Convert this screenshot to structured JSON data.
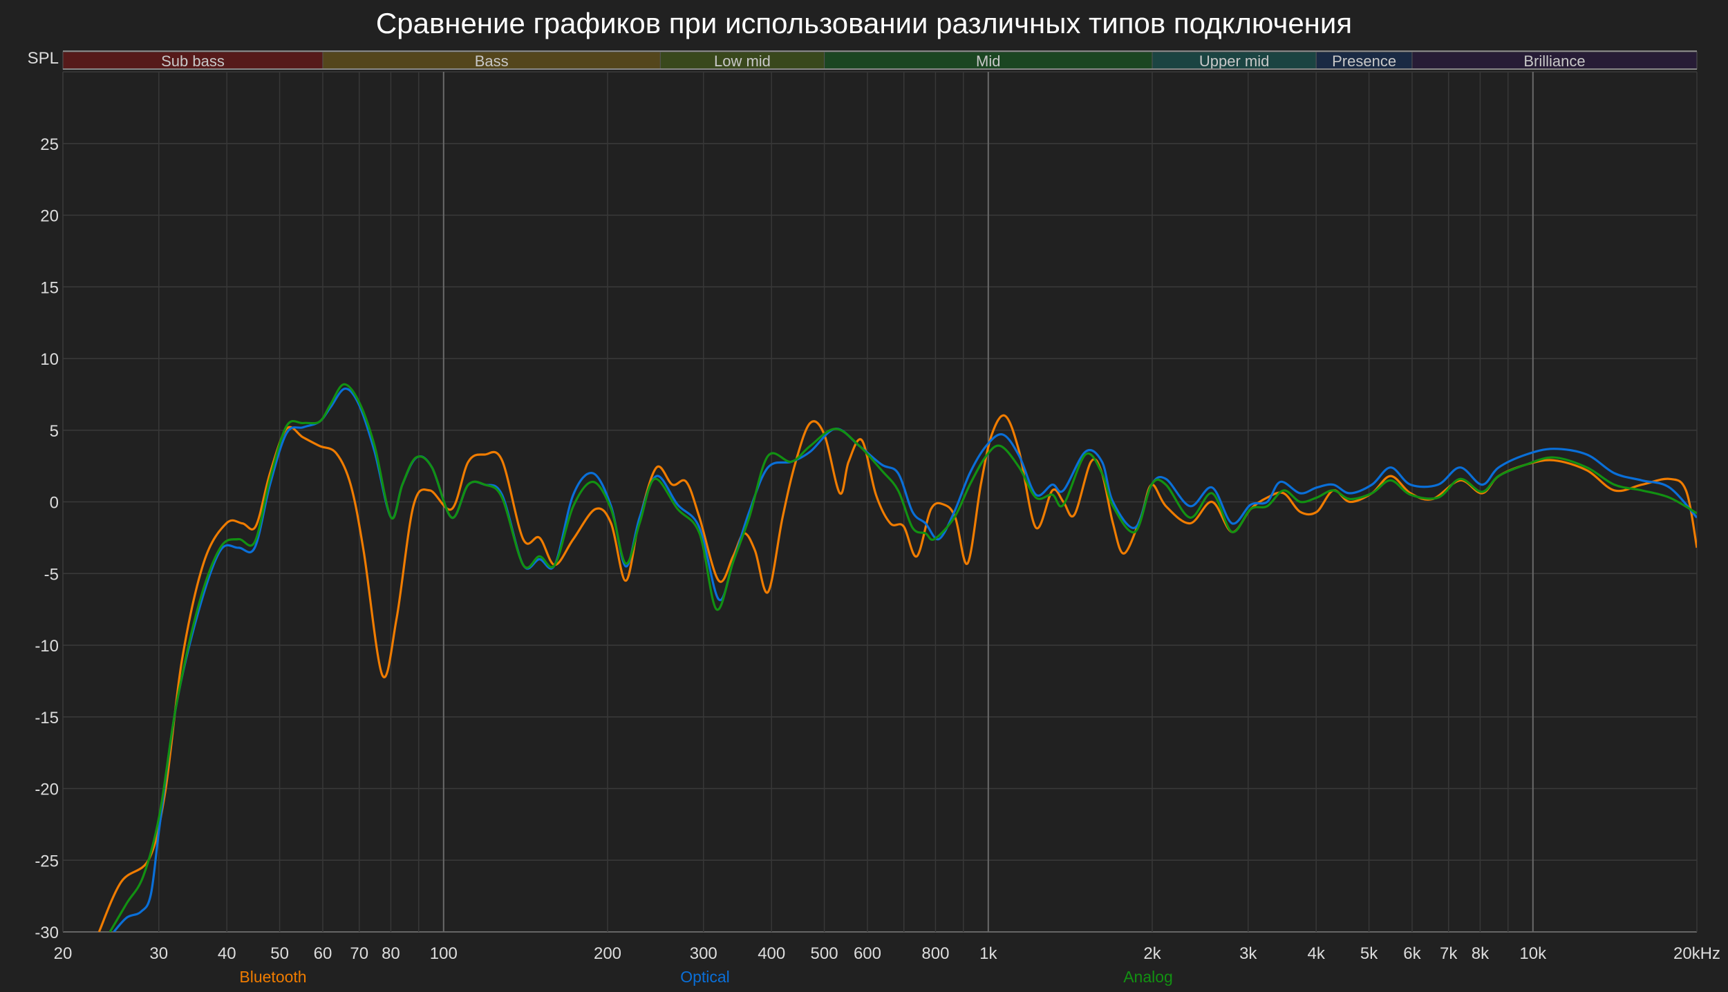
{
  "chart_data": {
    "type": "line",
    "title": "Сравнение графиков при использовании различных типов подключения",
    "ylabel": "SPL",
    "xscale": "log",
    "xlim": [
      20,
      20000
    ],
    "ylim": [
      -30,
      30
    ],
    "grid": true,
    "legend_placement": "bottom",
    "x_ticks": [
      {
        "f": 20,
        "label": "20"
      },
      {
        "f": 30,
        "label": "30"
      },
      {
        "f": 40,
        "label": "40"
      },
      {
        "f": 50,
        "label": "50"
      },
      {
        "f": 60,
        "label": "60"
      },
      {
        "f": 70,
        "label": "70"
      },
      {
        "f": 80,
        "label": "80"
      },
      {
        "f": 100,
        "label": "100"
      },
      {
        "f": 200,
        "label": "200"
      },
      {
        "f": 300,
        "label": "300"
      },
      {
        "f": 400,
        "label": "400"
      },
      {
        "f": 500,
        "label": "500"
      },
      {
        "f": 600,
        "label": "600"
      },
      {
        "f": 800,
        "label": "800"
      },
      {
        "f": 1000,
        "label": "1k"
      },
      {
        "f": 2000,
        "label": "2k"
      },
      {
        "f": 3000,
        "label": "3k"
      },
      {
        "f": 4000,
        "label": "4k"
      },
      {
        "f": 5000,
        "label": "5k"
      },
      {
        "f": 6000,
        "label": "6k"
      },
      {
        "f": 7000,
        "label": "7k"
      },
      {
        "f": 8000,
        "label": "8k"
      },
      {
        "f": 10000,
        "label": "10k"
      },
      {
        "f": 20000,
        "label": "20kHz"
      }
    ],
    "x_gridlines": [
      30,
      40,
      50,
      60,
      70,
      80,
      90,
      100,
      200,
      300,
      400,
      500,
      600,
      700,
      800,
      900,
      1000,
      2000,
      3000,
      4000,
      5000,
      6000,
      7000,
      8000,
      9000,
      10000,
      20000
    ],
    "x_major_gridlines": [
      100,
      1000,
      10000
    ],
    "y_ticks": [
      25,
      20,
      15,
      10,
      5,
      0,
      -5,
      -10,
      -15,
      -20,
      -25,
      -30
    ],
    "bands": [
      {
        "label": "Sub bass",
        "from": 20,
        "to": 60,
        "color": "#561a1a"
      },
      {
        "label": "Bass",
        "from": 60,
        "to": 250,
        "color": "#54461c"
      },
      {
        "label": "Low mid",
        "from": 250,
        "to": 500,
        "color": "#39481c"
      },
      {
        "label": "Mid",
        "from": 500,
        "to": 2000,
        "color": "#1b4622"
      },
      {
        "label": "Upper mid",
        "from": 2000,
        "to": 4000,
        "color": "#1b4442"
      },
      {
        "label": "Presence",
        "from": 4000,
        "to": 6000,
        "color": "#1a2a44"
      },
      {
        "label": "Brilliance",
        "from": 6000,
        "to": 20000,
        "color": "#271c36"
      }
    ],
    "series": [
      {
        "name": "Bluetooth",
        "color": "#f07c00",
        "points": [
          [
            23.3,
            -30
          ],
          [
            25.6,
            -26.5
          ],
          [
            28.8,
            -24.9
          ],
          [
            30.8,
            -20.3
          ],
          [
            33.1,
            -11
          ],
          [
            36.3,
            -4.2
          ],
          [
            39.9,
            -1.5
          ],
          [
            42.7,
            -1.5
          ],
          [
            45.2,
            -1.7
          ],
          [
            48,
            2
          ],
          [
            51.5,
            5.1
          ],
          [
            55.2,
            4.5
          ],
          [
            59.2,
            3.9
          ],
          [
            63.5,
            3.4
          ],
          [
            67.5,
            1.2
          ],
          [
            71.3,
            -3.4
          ],
          [
            77.2,
            -12.1
          ],
          [
            82,
            -8.1
          ],
          [
            88,
            -0.3
          ],
          [
            94.3,
            0.8
          ],
          [
            103.5,
            -0.5
          ],
          [
            111,
            2.8
          ],
          [
            119,
            3.3
          ],
          [
            128,
            2.9
          ],
          [
            140,
            -2.6
          ],
          [
            150,
            -2.5
          ],
          [
            160,
            -4.4
          ],
          [
            173,
            -2.6
          ],
          [
            190,
            -0.5
          ],
          [
            203,
            -1.5
          ],
          [
            216,
            -5.5
          ],
          [
            229,
            -1.2
          ],
          [
            246,
            2.4
          ],
          [
            263,
            1.2
          ],
          [
            279,
            1.4
          ],
          [
            295,
            -1.1
          ],
          [
            320,
            -5.5
          ],
          [
            340,
            -3.8
          ],
          [
            356,
            -2.2
          ],
          [
            373,
            -3.4
          ],
          [
            394,
            -6.3
          ],
          [
            419,
            -1.1
          ],
          [
            443,
            2.8
          ],
          [
            471,
            5.5
          ],
          [
            500,
            4.7
          ],
          [
            534,
            0.6
          ],
          [
            554,
            2.8
          ],
          [
            586,
            4.3
          ],
          [
            622,
            0.5
          ],
          [
            661,
            -1.5
          ],
          [
            699,
            -1.7
          ],
          [
            739,
            -3.8
          ],
          [
            785,
            -0.5
          ],
          [
            830,
            -0.2
          ],
          [
            870,
            -1.1
          ],
          [
            916,
            -4.3
          ],
          [
            969,
            1.2
          ],
          [
            1015,
            4.7
          ],
          [
            1074,
            6
          ],
          [
            1140,
            3.5
          ],
          [
            1223,
            -1.8
          ],
          [
            1311,
            0.8
          ],
          [
            1374,
            0
          ],
          [
            1439,
            -0.9
          ],
          [
            1544,
            2.8
          ],
          [
            1617,
            2
          ],
          [
            1694,
            -1.5
          ],
          [
            1775,
            -3.6
          ],
          [
            1904,
            -1.1
          ],
          [
            1994,
            1.2
          ],
          [
            2119,
            -0.3
          ],
          [
            2347,
            -1.5
          ],
          [
            2576,
            0
          ],
          [
            2802,
            -2.1
          ],
          [
            3032,
            -0.5
          ],
          [
            3251,
            0.3
          ],
          [
            3487,
            0.6
          ],
          [
            3739,
            -0.7
          ],
          [
            4009,
            -0.7
          ],
          [
            4299,
            0.8
          ],
          [
            4611,
            0
          ],
          [
            5062,
            0.6
          ],
          [
            5480,
            1.8
          ],
          [
            5960,
            0.6
          ],
          [
            6541,
            0.2
          ],
          [
            7348,
            1.5
          ],
          [
            8063,
            0.6
          ],
          [
            8650,
            1.8
          ],
          [
            9716,
            2.6
          ],
          [
            10920,
            2.9
          ],
          [
            12560,
            2.2
          ],
          [
            14110,
            0.8
          ],
          [
            15850,
            1.2
          ],
          [
            17810,
            1.6
          ],
          [
            19100,
            0.8
          ],
          [
            20000,
            -3.2
          ]
        ]
      },
      {
        "name": "Optical",
        "color": "#0a6fd8",
        "points": [
          [
            24.8,
            -30
          ],
          [
            26.2,
            -29
          ],
          [
            27.8,
            -28.6
          ],
          [
            29,
            -27.4
          ],
          [
            30.1,
            -22.6
          ],
          [
            32.3,
            -14.2
          ],
          [
            35.5,
            -7.6
          ],
          [
            38.9,
            -3.4
          ],
          [
            42,
            -3.2
          ],
          [
            45,
            -3.2
          ],
          [
            48,
            1.2
          ],
          [
            51.5,
            4.8
          ],
          [
            55.2,
            5.2
          ],
          [
            59.2,
            5.6
          ],
          [
            62,
            6.6
          ],
          [
            65.9,
            7.9
          ],
          [
            69.9,
            6.8
          ],
          [
            74.7,
            3.5
          ],
          [
            80.1,
            -1.1
          ],
          [
            84,
            1.2
          ],
          [
            89.2,
            3.1
          ],
          [
            95.2,
            2.4
          ],
          [
            103.5,
            -1.1
          ],
          [
            111,
            1.2
          ],
          [
            119,
            1.2
          ],
          [
            128,
            0.5
          ],
          [
            140,
            -4.4
          ],
          [
            150,
            -4
          ],
          [
            160,
            -4.4
          ],
          [
            173,
            0.5
          ],
          [
            188,
            2
          ],
          [
            203,
            -0.3
          ],
          [
            216,
            -4.5
          ],
          [
            229,
            -1.1
          ],
          [
            246,
            1.8
          ],
          [
            269,
            -0.2
          ],
          [
            295,
            -1.8
          ],
          [
            320,
            -6.8
          ],
          [
            340,
            -4.2
          ],
          [
            364,
            -0.7
          ],
          [
            394,
            2.4
          ],
          [
            435,
            2.8
          ],
          [
            471,
            3.5
          ],
          [
            524,
            5.1
          ],
          [
            580,
            3.9
          ],
          [
            637,
            2.6
          ],
          [
            683,
            2
          ],
          [
            726,
            -0.7
          ],
          [
            767,
            -1.5
          ],
          [
            811,
            -2.6
          ],
          [
            866,
            -0.7
          ],
          [
            925,
            2
          ],
          [
            991,
            3.9
          ],
          [
            1063,
            4.7
          ],
          [
            1140,
            3.2
          ],
          [
            1223,
            0.5
          ],
          [
            1311,
            1.2
          ],
          [
            1374,
            0.8
          ],
          [
            1508,
            3.5
          ],
          [
            1617,
            2.8
          ],
          [
            1694,
            0
          ],
          [
            1859,
            -1.8
          ],
          [
            1994,
            1.2
          ],
          [
            2119,
            1.6
          ],
          [
            2347,
            -0.3
          ],
          [
            2576,
            1
          ],
          [
            2802,
            -1.5
          ],
          [
            3032,
            -0.2
          ],
          [
            3251,
            0
          ],
          [
            3439,
            1.4
          ],
          [
            3739,
            0.6
          ],
          [
            4009,
            1
          ],
          [
            4299,
            1.2
          ],
          [
            4611,
            0.6
          ],
          [
            5062,
            1.2
          ],
          [
            5480,
            2.4
          ],
          [
            5960,
            1.2
          ],
          [
            6694,
            1.2
          ],
          [
            7348,
            2.4
          ],
          [
            8063,
            1.2
          ],
          [
            8650,
            2.4
          ],
          [
            9716,
            3.3
          ],
          [
            10920,
            3.7
          ],
          [
            12560,
            3.3
          ],
          [
            14110,
            2
          ],
          [
            15850,
            1.5
          ],
          [
            17810,
            1
          ],
          [
            20000,
            -1.1
          ]
        ]
      },
      {
        "name": "Analog",
        "color": "#129112",
        "points": [
          [
            24.4,
            -30
          ],
          [
            26.2,
            -28
          ],
          [
            28.1,
            -26.1
          ],
          [
            30.1,
            -21.8
          ],
          [
            32.3,
            -14.2
          ],
          [
            35.5,
            -7.2
          ],
          [
            38.9,
            -3.2
          ],
          [
            42,
            -2.6
          ],
          [
            45,
            -2.8
          ],
          [
            48,
            1.6
          ],
          [
            51.5,
            5.3
          ],
          [
            55.2,
            5.5
          ],
          [
            59.2,
            5.6
          ],
          [
            62,
            6.8
          ],
          [
            65.6,
            8.2
          ],
          [
            69.9,
            7
          ],
          [
            74.7,
            3.9
          ],
          [
            80.1,
            -1.1
          ],
          [
            84,
            1.2
          ],
          [
            89,
            3.1
          ],
          [
            95.2,
            2.4
          ],
          [
            103.5,
            -1.1
          ],
          [
            111,
            1.2
          ],
          [
            119,
            1.2
          ],
          [
            128,
            0.3
          ],
          [
            140,
            -4.4
          ],
          [
            150,
            -3.8
          ],
          [
            160,
            -4.4
          ],
          [
            173,
            -0.3
          ],
          [
            188,
            1.4
          ],
          [
            203,
            -0.5
          ],
          [
            216,
            -4.3
          ],
          [
            229,
            -1.5
          ],
          [
            244,
            1.6
          ],
          [
            269,
            -0.5
          ],
          [
            295,
            -2.2
          ],
          [
            317,
            -7.5
          ],
          [
            340,
            -4.2
          ],
          [
            364,
            -1.1
          ],
          [
            394,
            3.2
          ],
          [
            435,
            2.8
          ],
          [
            471,
            3.9
          ],
          [
            524,
            5.1
          ],
          [
            580,
            3.9
          ],
          [
            637,
            2.2
          ],
          [
            683,
            0.8
          ],
          [
            726,
            -1.8
          ],
          [
            767,
            -2.2
          ],
          [
            796,
            -2.6
          ],
          [
            866,
            -1.1
          ],
          [
            925,
            1.2
          ],
          [
            991,
            3.2
          ],
          [
            1053,
            3.9
          ],
          [
            1140,
            2.4
          ],
          [
            1223,
            0.3
          ],
          [
            1311,
            0.5
          ],
          [
            1374,
            -0.2
          ],
          [
            1508,
            3.3
          ],
          [
            1617,
            2
          ],
          [
            1694,
            -0.3
          ],
          [
            1859,
            -2.1
          ],
          [
            1994,
            1.2
          ],
          [
            2119,
            1.2
          ],
          [
            2347,
            -1.1
          ],
          [
            2576,
            0.6
          ],
          [
            2802,
            -2.1
          ],
          [
            3032,
            -0.5
          ],
          [
            3251,
            -0.3
          ],
          [
            3487,
            0.8
          ],
          [
            3739,
            0
          ],
          [
            4009,
            0.3
          ],
          [
            4299,
            0.8
          ],
          [
            4611,
            0.2
          ],
          [
            5062,
            0.6
          ],
          [
            5480,
            1.5
          ],
          [
            5960,
            0.5
          ],
          [
            6694,
            0.3
          ],
          [
            7348,
            1.6
          ],
          [
            8063,
            0.7
          ],
          [
            8650,
            1.8
          ],
          [
            9716,
            2.6
          ],
          [
            10920,
            3.1
          ],
          [
            12560,
            2.4
          ],
          [
            14110,
            1.2
          ],
          [
            15850,
            0.8
          ],
          [
            17810,
            0.3
          ],
          [
            20000,
            -0.8
          ]
        ]
      }
    ]
  }
}
